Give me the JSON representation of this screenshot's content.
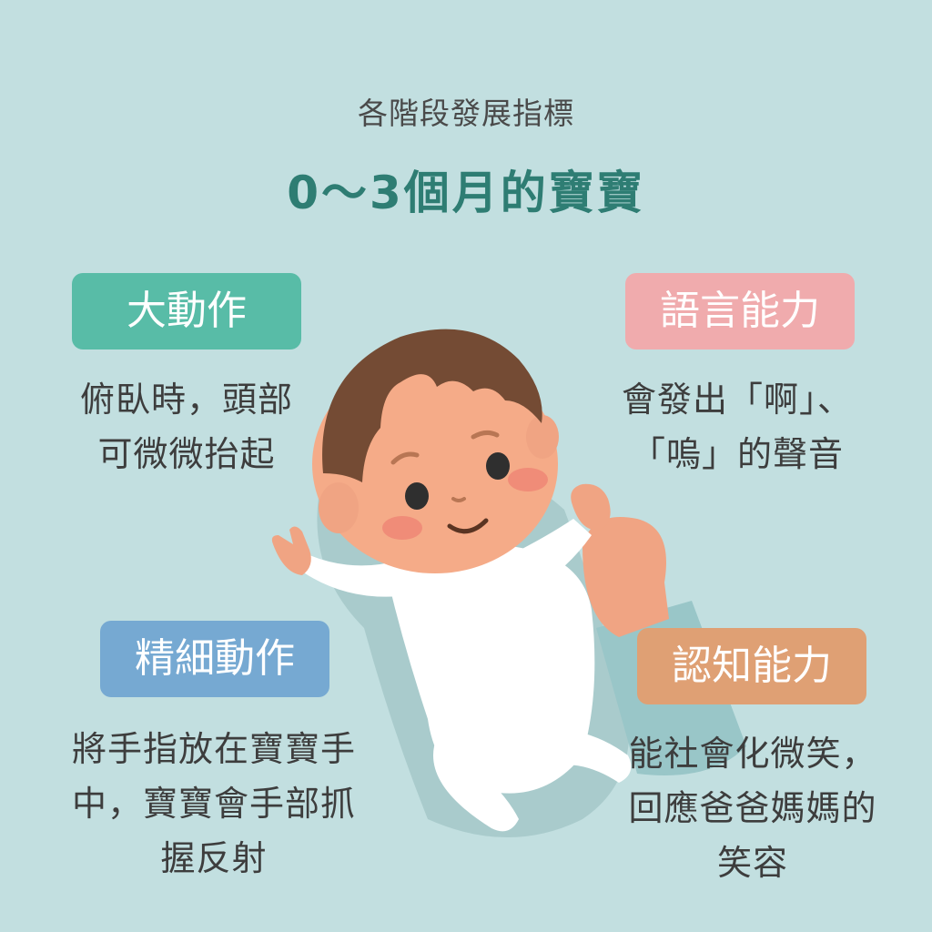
{
  "header": {
    "subtitle": "各階段發展指標",
    "title": "0～3個月的寶寶"
  },
  "sections": {
    "gross_motor": {
      "label": "大動作",
      "lines": [
        "俯臥時，頭部",
        "可微微抬起"
      ]
    },
    "language": {
      "label": "語言能力",
      "lines": [
        "會發出「啊」、",
        "「嗚」的聲音"
      ]
    },
    "fine_motor": {
      "label": "精細動作",
      "lines": [
        "將手指放在寶寶手",
        "中，寶寶會手部抓",
        "握反射"
      ]
    },
    "cognitive": {
      "label": "認知能力",
      "lines": [
        "能社會化微笑，",
        "回應爸爸媽媽的",
        "笑容"
      ]
    }
  },
  "colors": {
    "background": "#c2dfe0",
    "title": "#2e7d73",
    "gross_motor": "#58bca7",
    "language": "#f0abad",
    "fine_motor": "#76a9d2",
    "cognitive": "#dfa074"
  }
}
